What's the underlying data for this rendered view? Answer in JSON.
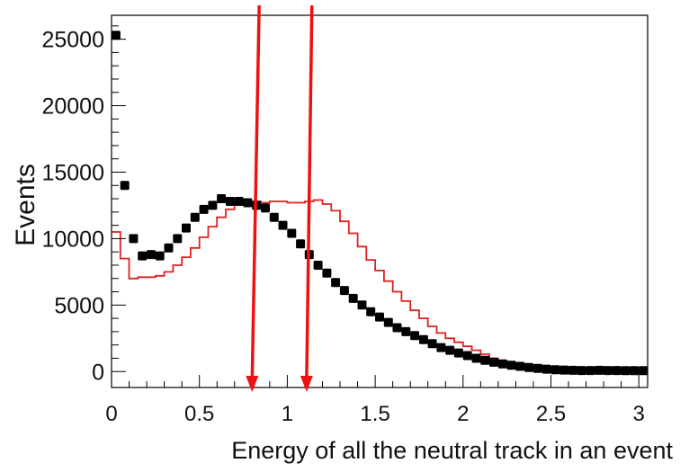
{
  "chart_data": {
    "type": "scatter",
    "xlabel": "Energy of all the neutral track in an event",
    "ylabel": "Events",
    "xlim": [
      0,
      3.05
    ],
    "ylim": [
      -1200,
      26800
    ],
    "x_ticks": [
      0,
      0.5,
      1,
      1.5,
      2,
      2.5,
      3
    ],
    "x_tick_labels": [
      "0",
      "0.5",
      "1",
      "1.5",
      "2",
      "2.5",
      "3"
    ],
    "y_ticks": [
      0,
      5000,
      10000,
      15000,
      20000,
      25000
    ],
    "y_tick_labels": [
      "0",
      "5000",
      "10000",
      "15000",
      "20000",
      "25000"
    ],
    "grid": false,
    "bin_width": 0.05,
    "series": [
      {
        "style": "points",
        "color": "#000000",
        "x": [
          0.025,
          0.075,
          0.125,
          0.175,
          0.225,
          0.275,
          0.325,
          0.375,
          0.425,
          0.475,
          0.525,
          0.575,
          0.625,
          0.675,
          0.725,
          0.775,
          0.825,
          0.875,
          0.925,
          0.975,
          1.025,
          1.075,
          1.125,
          1.175,
          1.225,
          1.275,
          1.325,
          1.375,
          1.425,
          1.475,
          1.525,
          1.575,
          1.625,
          1.675,
          1.725,
          1.775,
          1.825,
          1.875,
          1.925,
          1.975,
          2.025,
          2.075,
          2.125,
          2.175,
          2.225,
          2.275,
          2.325,
          2.375,
          2.425,
          2.475,
          2.525,
          2.575,
          2.625,
          2.675,
          2.725,
          2.775,
          2.825,
          2.875,
          2.925,
          2.975,
          3.025
        ],
        "y": [
          25300,
          14000,
          10000,
          8700,
          8800,
          8700,
          9300,
          10000,
          10800,
          11600,
          12200,
          12500,
          13000,
          12800,
          12800,
          12700,
          12500,
          12300,
          11600,
          11000,
          10400,
          9600,
          8800,
          8000,
          7400,
          6700,
          6100,
          5500,
          5000,
          4500,
          4100,
          3700,
          3300,
          3000,
          2700,
          2400,
          2100,
          1800,
          1600,
          1400,
          1200,
          1000,
          850,
          700,
          580,
          480,
          390,
          310,
          240,
          180,
          140,
          110,
          90,
          80,
          80,
          90,
          80,
          80,
          70,
          70,
          70
        ]
      },
      {
        "style": "step",
        "color": "#e02020",
        "x": [
          0.025,
          0.075,
          0.125,
          0.175,
          0.225,
          0.275,
          0.325,
          0.375,
          0.425,
          0.475,
          0.525,
          0.575,
          0.625,
          0.675,
          0.725,
          0.775,
          0.825,
          0.875,
          0.925,
          0.975,
          1.025,
          1.075,
          1.125,
          1.175,
          1.225,
          1.275,
          1.325,
          1.375,
          1.425,
          1.475,
          1.525,
          1.575,
          1.625,
          1.675,
          1.725,
          1.775,
          1.825,
          1.875,
          1.925,
          1.975,
          2.025,
          2.075,
          2.125,
          2.175,
          2.225,
          2.275,
          2.325,
          2.375,
          2.425,
          2.475,
          2.525,
          2.575,
          2.625,
          2.675,
          2.725,
          2.775,
          2.825,
          2.875,
          2.925,
          2.975,
          3.025
        ],
        "y": [
          10500,
          8500,
          7000,
          7100,
          7100,
          7200,
          7500,
          8000,
          8600,
          9300,
          10100,
          10900,
          11600,
          12200,
          12600,
          12800,
          12800,
          12700,
          12800,
          12800,
          12700,
          12700,
          12800,
          12900,
          12600,
          12100,
          11300,
          10400,
          9400,
          8400,
          7600,
          6800,
          6000,
          5300,
          4600,
          4000,
          3400,
          2900,
          2500,
          2200,
          1900,
          1600,
          1300,
          1000,
          800,
          600,
          450,
          340,
          250,
          180,
          130,
          100,
          80,
          70,
          60,
          60,
          60,
          60,
          60,
          60,
          60
        ]
      }
    ],
    "cut_arrows": [
      {
        "x_top": 0.84,
        "x_bottom": 0.8,
        "color": "#ee1111"
      },
      {
        "x_top": 1.14,
        "x_bottom": 1.11,
        "color": "#ee1111"
      }
    ]
  }
}
